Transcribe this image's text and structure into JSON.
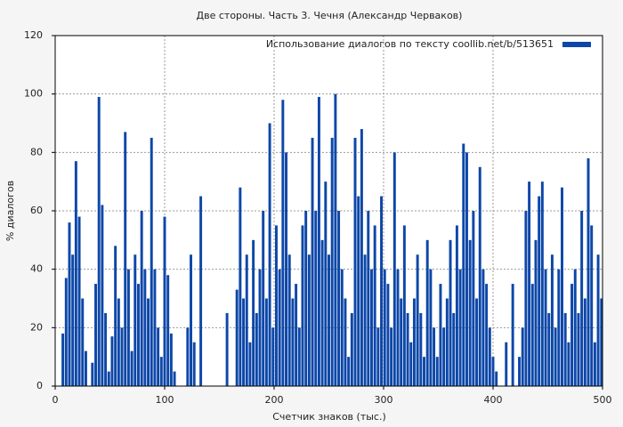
{
  "chart_data": {
    "type": "bar",
    "title": "Две стороны. Часть 3. Чечня (Александр Черваков)",
    "x_label": "Счетчик знаков (тыс.)",
    "y_label": "% диалогов",
    "xlim": [
      0,
      500
    ],
    "xticks": [
      0,
      100,
      200,
      300,
      400,
      500
    ],
    "ylim": [
      0,
      120
    ],
    "yticks": [
      0,
      20,
      40,
      60,
      80,
      100,
      120
    ],
    "grid": true,
    "legend": "upper right",
    "x": [
      1,
      4,
      7,
      10,
      13,
      16,
      19,
      22,
      25,
      28,
      31,
      34,
      37,
      40,
      43,
      46,
      49,
      52,
      55,
      58,
      61,
      64,
      67,
      70,
      73,
      76,
      79,
      82,
      85,
      88,
      91,
      94,
      97,
      100,
      103,
      106,
      109,
      112,
      115,
      118,
      121,
      124,
      127,
      130,
      133,
      136,
      139,
      142,
      145,
      148,
      151,
      154,
      157,
      160,
      163,
      166,
      169,
      172,
      175,
      178,
      181,
      184,
      187,
      190,
      193,
      196,
      199,
      202,
      205,
      208,
      211,
      214,
      217,
      220,
      223,
      226,
      229,
      232,
      235,
      238,
      241,
      244,
      247,
      250,
      253,
      256,
      259,
      262,
      265,
      268,
      271,
      274,
      277,
      280,
      283,
      286,
      289,
      292,
      295,
      298,
      301,
      304,
      307,
      310,
      313,
      316,
      319,
      322,
      325,
      328,
      331,
      334,
      337,
      340,
      343,
      346,
      349,
      352,
      355,
      358,
      361,
      364,
      367,
      370,
      373,
      376,
      379,
      382,
      385,
      388,
      391,
      394,
      397,
      400,
      403,
      406,
      409,
      412,
      415,
      418,
      421,
      424,
      427,
      430,
      433,
      436,
      439,
      442,
      445,
      448,
      451,
      454,
      457,
      460,
      463,
      466,
      469,
      472,
      475,
      478,
      481,
      484,
      487,
      490,
      493,
      496,
      499
    ],
    "series": [
      {
        "name": "Использование диалогов по тексту  coollib.net/b/513651",
        "color": "#0d47a8",
        "values": [
          0,
          0,
          18,
          37,
          56,
          45,
          77,
          58,
          30,
          12,
          0,
          8,
          35,
          99,
          62,
          25,
          5,
          17,
          48,
          30,
          20,
          87,
          40,
          12,
          45,
          35,
          60,
          40,
          30,
          85,
          40,
          20,
          10,
          58,
          38,
          18,
          5,
          0,
          0,
          0,
          20,
          45,
          15,
          0,
          65,
          0,
          0,
          0,
          0,
          0,
          0,
          0,
          25,
          0,
          0,
          33,
          68,
          30,
          45,
          15,
          50,
          25,
          40,
          60,
          30,
          90,
          20,
          55,
          40,
          98,
          80,
          45,
          30,
          35,
          20,
          55,
          60,
          45,
          85,
          60,
          99,
          50,
          70,
          45,
          85,
          100,
          60,
          40,
          30,
          10,
          25,
          85,
          65,
          88,
          45,
          60,
          40,
          55,
          20,
          65,
          40,
          35,
          20,
          80,
          40,
          30,
          55,
          25,
          15,
          30,
          45,
          25,
          10,
          50,
          40,
          20,
          10,
          35,
          20,
          30,
          50,
          25,
          55,
          40,
          83,
          80,
          50,
          60,
          30,
          75,
          40,
          35,
          20,
          10,
          5,
          0,
          0,
          15,
          0,
          35,
          0,
          10,
          20,
          60,
          70,
          35,
          50,
          65,
          70,
          40,
          25,
          45,
          20,
          40,
          68,
          25,
          15,
          35,
          40,
          25,
          60,
          30,
          78,
          55,
          15,
          45,
          30
        ]
      }
    ]
  }
}
